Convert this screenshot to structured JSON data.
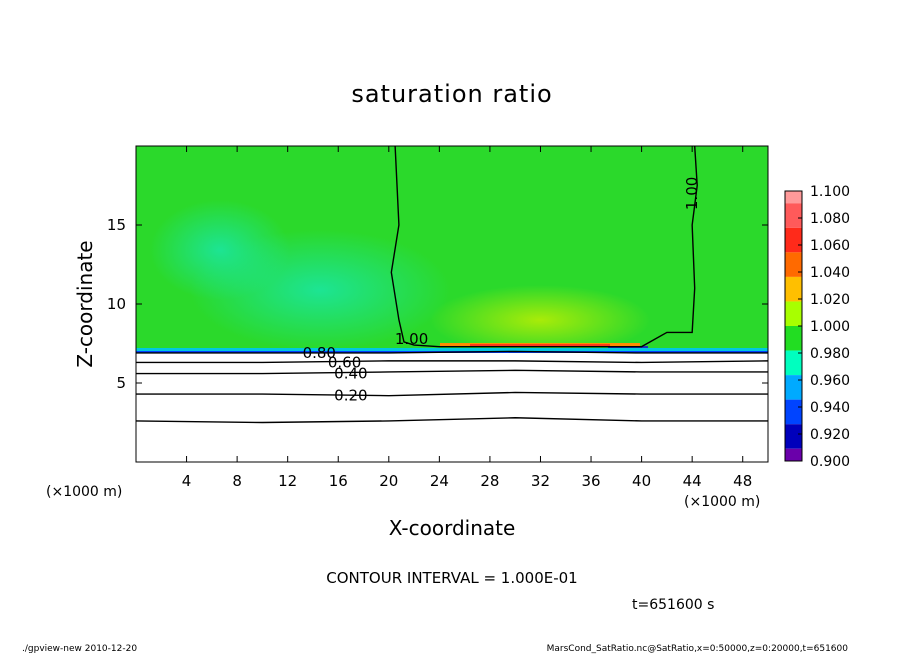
{
  "chart_data": {
    "type": "heatmap",
    "title": "saturation ratio",
    "xlabel": "X-coordinate",
    "ylabel": "Z-coordinate",
    "x_unit": "(×1000 m)",
    "y_unit": "(×1000 m)",
    "xlim": [
      0,
      50
    ],
    "ylim": [
      0,
      20
    ],
    "x_ticks": [
      4,
      8,
      12,
      16,
      20,
      24,
      28,
      32,
      36,
      40,
      44,
      48
    ],
    "y_ticks": [
      5,
      10,
      15
    ],
    "colorbar": {
      "levels": [
        1.1,
        1.08,
        1.06,
        1.04,
        1.02,
        1.0,
        0.98,
        0.96,
        0.94,
        0.92,
        0.9
      ],
      "labels": [
        "1.100",
        "1.080",
        "1.060",
        "1.040",
        "1.020",
        "1.000",
        "0.980",
        "0.960",
        "0.940",
        "0.920",
        "0.900"
      ],
      "colors": [
        "#ff9a9a",
        "#ff5a5a",
        "#ff2a1a",
        "#ff6a00",
        "#ffbf00",
        "#a8ff00",
        "#22dd22",
        "#00ffbf",
        "#00aaff",
        "#0044ff",
        "#0000bb",
        "#6a00aa"
      ]
    },
    "contours": [
      {
        "label": "1.00",
        "x": [
          20.5,
          20.8,
          20.2,
          20.8,
          21.2,
          22.0,
          24.0,
          30.0,
          36.0,
          40.0,
          42.0,
          44.0,
          44.2,
          44.0,
          44.4,
          44.2
        ],
        "y": [
          20.0,
          15.0,
          12.0,
          9.0,
          7.6,
          7.4,
          7.3,
          7.3,
          7.3,
          7.3,
          8.2,
          8.2,
          11.0,
          15.0,
          17.5,
          20.0
        ]
      },
      {
        "label": "0.80",
        "x": [
          0,
          10,
          20,
          30,
          40,
          50
        ],
        "y": [
          6.9,
          6.9,
          6.9,
          7.0,
          6.9,
          6.9
        ]
      },
      {
        "label": "0.60",
        "x": [
          0,
          10,
          20,
          30,
          40,
          50
        ],
        "y": [
          6.3,
          6.3,
          6.4,
          6.4,
          6.3,
          6.4
        ]
      },
      {
        "label": "0.40",
        "x": [
          0,
          10,
          20,
          30,
          40,
          50
        ],
        "y": [
          5.6,
          5.6,
          5.7,
          5.8,
          5.7,
          5.7
        ]
      },
      {
        "label": "0.20",
        "x": [
          0,
          10,
          20,
          30,
          40,
          50
        ],
        "y": [
          4.3,
          4.3,
          4.2,
          4.4,
          4.3,
          4.3
        ]
      },
      {
        "label": "",
        "x": [
          0,
          10,
          20,
          30,
          40,
          50
        ],
        "y": [
          2.6,
          2.5,
          2.6,
          2.8,
          2.6,
          2.6
        ]
      }
    ],
    "contour_interval": "CONTOUR INTERVAL = 1.000E-01",
    "time_label": "t=651600 s"
  },
  "footer": {
    "left": "./gpview-new   2010-12-20",
    "right": "MarsCond_SatRatio.nc@SatRatio,x=0:50000,z=0:20000,t=651600"
  }
}
